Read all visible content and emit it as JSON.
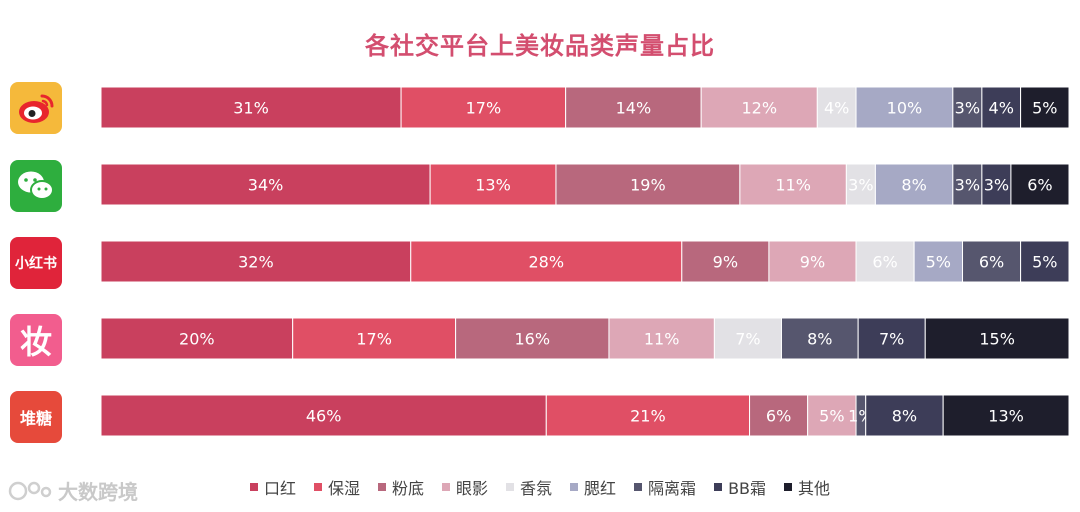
{
  "chart_data": {
    "type": "bar",
    "orientation": "horizontal-stacked-100",
    "title": "各社交平台上美妆品类声量占比",
    "categories": [
      "微博",
      "微信",
      "小红书",
      "妆",
      "堆糖"
    ],
    "series": [
      {
        "name": "口红",
        "color": "#c9405e",
        "values": [
          31,
          34,
          32,
          20,
          46
        ]
      },
      {
        "name": "保湿",
        "color": "#e04f65",
        "values": [
          17,
          13,
          28,
          17,
          21
        ]
      },
      {
        "name": "粉底",
        "color": "#b8687d",
        "values": [
          14,
          19,
          9,
          16,
          6
        ]
      },
      {
        "name": "眼影",
        "color": "#dda7b6",
        "values": [
          12,
          11,
          9,
          11,
          5
        ]
      },
      {
        "name": "香氛",
        "color": "#e2e1e5",
        "values": [
          4,
          3,
          6,
          7,
          0
        ]
      },
      {
        "name": "腮红",
        "color": "#a6a9c5",
        "values": [
          10,
          8,
          5,
          0,
          0
        ]
      },
      {
        "name": "隔离霜",
        "color": "#56566e",
        "values": [
          3,
          3,
          6,
          8,
          1
        ]
      },
      {
        "name": "BB霜",
        "color": "#3d3d58",
        "values": [
          4,
          3,
          5,
          7,
          8
        ]
      },
      {
        "name": "其他",
        "color": "#1e1e2c",
        "values": [
          5,
          6,
          0,
          15,
          13
        ]
      }
    ],
    "data_labels": [
      [
        "31%",
        "17%",
        "14%",
        "12%",
        "4%",
        "10%",
        "3%",
        "4%",
        "5%"
      ],
      [
        "34%",
        "13%",
        "19%",
        "11%",
        "3%",
        "8%",
        "3%",
        "3%",
        "6%"
      ],
      [
        "32%",
        "28%",
        "9%",
        "9%",
        "6%",
        "5%",
        "6%",
        "5%",
        ""
      ],
      [
        "20%",
        "17%",
        "16%",
        "11%",
        "7%",
        "",
        "8%",
        "7%",
        "15%"
      ],
      [
        "46%",
        "21%",
        "6%",
        "5%",
        "",
        "",
        "1%",
        "8%",
        "13%"
      ]
    ],
    "legend_position": "bottom",
    "grid": false
  },
  "icons": [
    {
      "name": "weibo-icon",
      "bg": "#f5b93b",
      "label": ""
    },
    {
      "name": "wechat-icon",
      "bg": "#2eae3e",
      "label": ""
    },
    {
      "name": "xiaohongshu-icon",
      "bg": "#e0243a",
      "label": "小红书"
    },
    {
      "name": "zhuang-icon",
      "bg": "#f25d8e",
      "label": "妆"
    },
    {
      "name": "duitang-icon",
      "bg": "#e64a3b",
      "label": "堆糖"
    }
  ],
  "watermark": "大数跨境"
}
